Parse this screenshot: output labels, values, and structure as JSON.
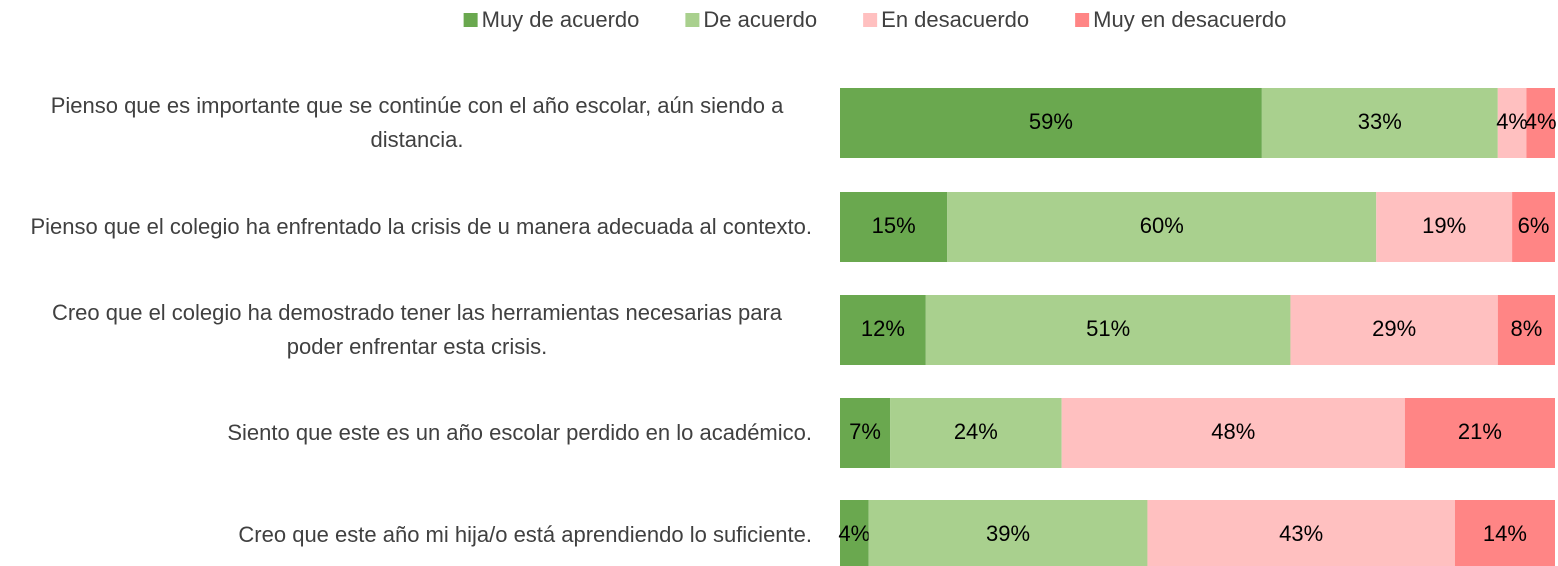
{
  "chart_data": {
    "type": "stacked-barh",
    "categories": [
      "Pienso que es importante que se continúe con el año escolar, aún siendo a distancia.",
      "Pienso que el colegio ha enfrentado la crisis de u manera adecuada al contexto.",
      "Creo que el colegio ha demostrado tener las herramientas necesarias para poder enfrentar esta crisis.",
      "Siento que este es un año escolar perdido en lo académico.",
      "Creo que este año mi hija/o está aprendiendo lo suficiente."
    ],
    "series": [
      {
        "name": "Muy de acuerdo",
        "color": "#6aa84f",
        "values": [
          59,
          15,
          12,
          7,
          4
        ],
        "value_labels": [
          "59%",
          "15%",
          "12%",
          "7%",
          "4%"
        ]
      },
      {
        "name": "De acuerdo",
        "color": "#a9d08e",
        "values": [
          33,
          60,
          51,
          24,
          39
        ],
        "value_labels": [
          "33%",
          "60%",
          "51%",
          "24%",
          "39%"
        ]
      },
      {
        "name": "En desacuerdo",
        "color": "#ffc0c0",
        "values": [
          4,
          19,
          29,
          48,
          43
        ],
        "value_labels": [
          "4%",
          "19%",
          "29%",
          "48%",
          "43%"
        ]
      },
      {
        "name": "Muy en desacuerdo",
        "color": "#ff8585",
        "values": [
          4,
          6,
          8,
          21,
          14
        ],
        "value_labels": [
          "4%",
          "6%",
          "8%",
          "21%",
          "14%"
        ]
      }
    ],
    "xlim": [
      0,
      100
    ],
    "legend": "top"
  }
}
